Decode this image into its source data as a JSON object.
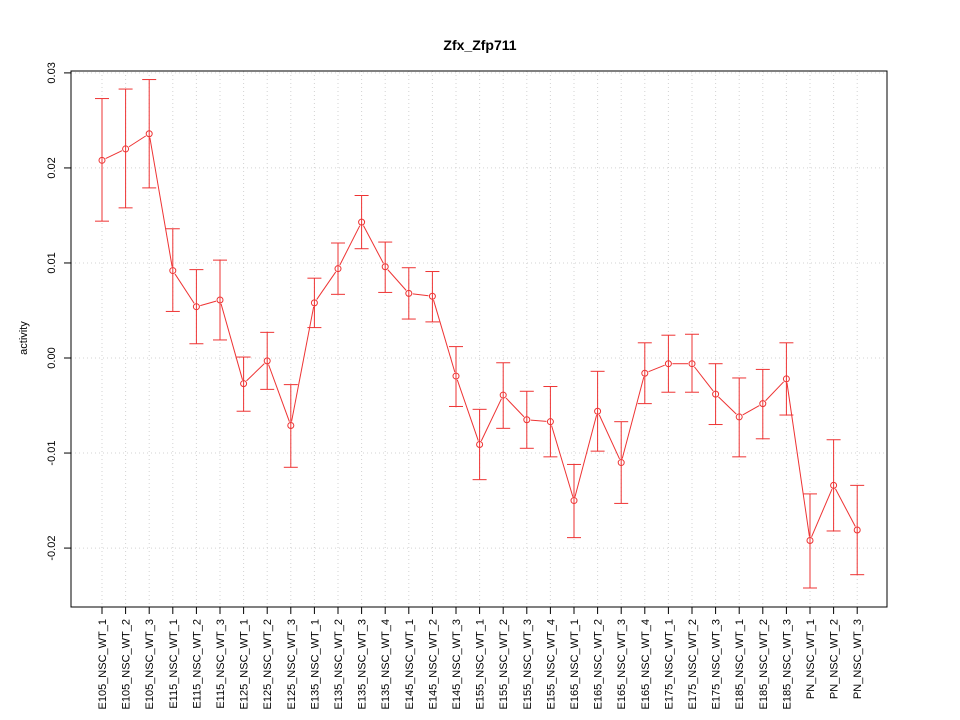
{
  "chart_data": {
    "type": "line",
    "title": "Zfx_Zfp711",
    "xlabel": "",
    "ylabel": "activity",
    "ylim": [
      -0.0262,
      0.0302
    ],
    "yticks": [
      -0.02,
      -0.01,
      0.0,
      0.01,
      0.02,
      0.03
    ],
    "ytick_labels": [
      "-0.02",
      "-0.01",
      "0.00",
      "0.01",
      "0.02",
      "0.03"
    ],
    "grid": true,
    "series_color": "#ee3333",
    "grid_color": "#d3d3d3",
    "categories": [
      "E105_NSC_WT_1",
      "E105_NSC_WT_2",
      "E105_NSC_WT_3",
      "E115_NSC_WT_1",
      "E115_NSC_WT_2",
      "E115_NSC_WT_3",
      "E125_NSC_WT_1",
      "E125_NSC_WT_2",
      "E125_NSC_WT_3",
      "E135_NSC_WT_1",
      "E135_NSC_WT_2",
      "E135_NSC_WT_3",
      "E135_NSC_WT_4",
      "E145_NSC_WT_1",
      "E145_NSC_WT_2",
      "E145_NSC_WT_3",
      "E155_NSC_WT_1",
      "E155_NSC_WT_2",
      "E155_NSC_WT_3",
      "E155_NSC_WT_4",
      "E165_NSC_WT_1",
      "E165_NSC_WT_2",
      "E165_NSC_WT_3",
      "E165_NSC_WT_4",
      "E175_NSC_WT_1",
      "E175_NSC_WT_2",
      "E175_NSC_WT_3",
      "E185_NSC_WT_1",
      "E185_NSC_WT_2",
      "E185_NSC_WT_3",
      "PN_NSC_WT_1",
      "PN_NSC_WT_2",
      "PN_NSC_WT_3"
    ],
    "values": [
      0.0208,
      0.022,
      0.0236,
      0.0092,
      0.0054,
      0.0061,
      -0.0027,
      -0.0003,
      -0.0071,
      0.0058,
      0.0094,
      0.0143,
      0.0096,
      0.0068,
      0.0065,
      -0.0019,
      -0.0091,
      -0.0039,
      -0.0065,
      -0.0067,
      -0.015,
      -0.0056,
      -0.011,
      -0.0016,
      -0.0006,
      -0.0006,
      -0.0038,
      -0.0062,
      -0.0048,
      -0.0022,
      -0.0192,
      -0.0134,
      -0.0181
    ],
    "error_low": [
      0.0144,
      0.0158,
      0.0179,
      0.0049,
      0.0015,
      0.0019,
      -0.0056,
      -0.0033,
      -0.0115,
      0.0032,
      0.0067,
      0.0115,
      0.0069,
      0.0041,
      0.0038,
      -0.0051,
      -0.0128,
      -0.0074,
      -0.0095,
      -0.0104,
      -0.0189,
      -0.0098,
      -0.0153,
      -0.0048,
      -0.0036,
      -0.0036,
      -0.007,
      -0.0104,
      -0.0085,
      -0.006,
      -0.0242,
      -0.0182,
      -0.0228
    ],
    "error_high": [
      0.0273,
      0.0283,
      0.0293,
      0.0136,
      0.0093,
      0.0103,
      0.0001,
      0.0027,
      -0.0028,
      0.0084,
      0.0121,
      0.0171,
      0.0122,
      0.0095,
      0.0091,
      0.0012,
      -0.0054,
      -0.0005,
      -0.0035,
      -0.003,
      -0.0112,
      -0.0014,
      -0.0067,
      0.0016,
      0.0024,
      0.0025,
      -0.0006,
      -0.0021,
      -0.0012,
      0.0016,
      -0.0143,
      -0.0086,
      -0.0134
    ]
  }
}
